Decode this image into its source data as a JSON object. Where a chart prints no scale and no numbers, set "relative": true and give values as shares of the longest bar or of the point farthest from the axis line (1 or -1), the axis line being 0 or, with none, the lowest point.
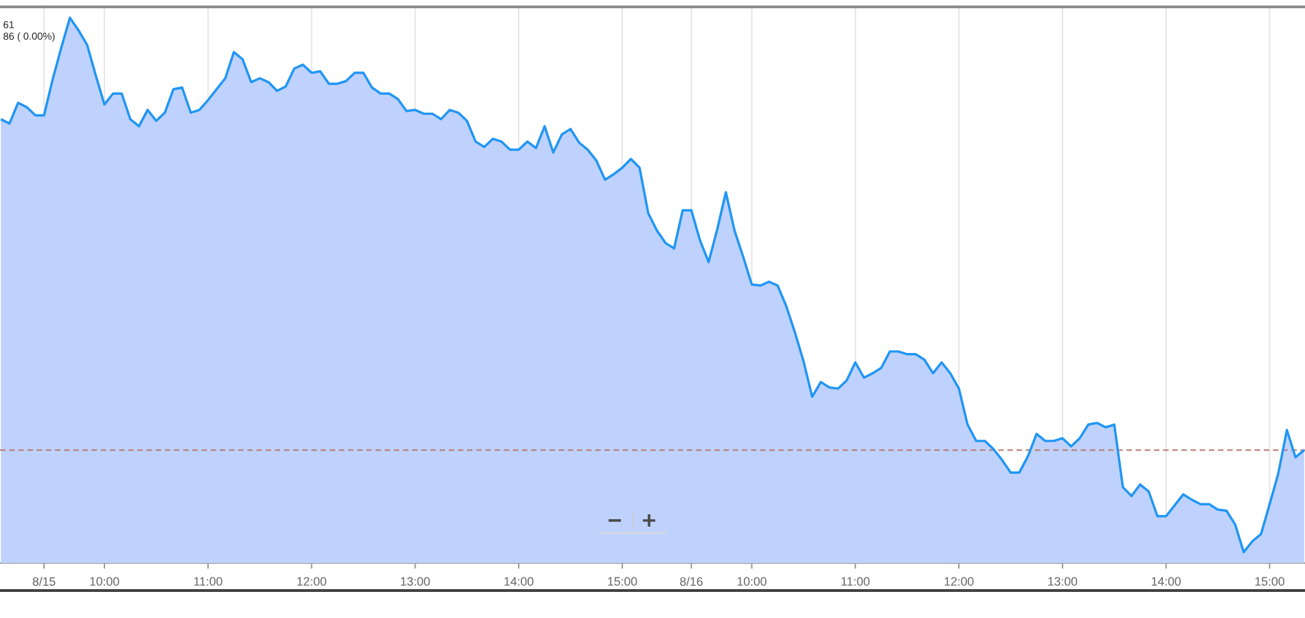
{
  "chart_data": {
    "type": "area",
    "relative": true,
    "color": "#2196f3",
    "categories": [
      null,
      null,
      null,
      null,
      null,
      "8/15",
      null,
      null,
      null,
      null,
      null,
      null,
      "10:00",
      null,
      null,
      null,
      null,
      null,
      null,
      null,
      null,
      null,
      null,
      null,
      "11:00",
      null,
      null,
      null,
      null,
      null,
      null,
      null,
      null,
      null,
      null,
      null,
      "12:00",
      null,
      null,
      null,
      null,
      null,
      null,
      null,
      null,
      null,
      null,
      null,
      "13:00",
      null,
      null,
      null,
      null,
      null,
      null,
      null,
      null,
      null,
      null,
      null,
      "14:00",
      null,
      null,
      null,
      null,
      null,
      null,
      null,
      null,
      null,
      null,
      null,
      "15:00",
      null,
      null,
      null,
      null,
      null,
      null,
      null,
      "8/16",
      null,
      null,
      null,
      null,
      null,
      null,
      "10:00",
      null,
      null,
      null,
      null,
      null,
      null,
      null,
      null,
      null,
      null,
      null,
      "11:00",
      null,
      null,
      null,
      null,
      null,
      null,
      null,
      null,
      null,
      null,
      null,
      "12:00",
      null,
      null,
      null,
      null,
      null,
      null,
      null,
      null,
      null,
      null,
      null,
      "13:00",
      null,
      null,
      null,
      null,
      null,
      null,
      null,
      null,
      null,
      null,
      null,
      "14:00",
      null,
      null,
      null,
      null,
      null,
      null,
      null,
      null,
      null,
      null,
      null,
      "15:00",
      null,
      null,
      null,
      null
    ],
    "values": [
      0.814,
      0.806,
      0.844,
      0.836,
      0.821,
      0.821,
      0.887,
      0.945,
      1.0,
      0.977,
      0.95,
      0.894,
      0.841,
      0.861,
      0.861,
      0.814,
      0.801,
      0.831,
      0.811,
      0.826,
      0.869,
      0.872,
      0.826,
      0.831,
      0.849,
      0.869,
      0.889,
      0.937,
      0.924,
      0.882,
      0.889,
      0.882,
      0.866,
      0.874,
      0.907,
      0.914,
      0.899,
      0.902,
      0.879,
      0.879,
      0.884,
      0.899,
      0.899,
      0.872,
      0.861,
      0.861,
      0.851,
      0.829,
      0.831,
      0.824,
      0.824,
      0.814,
      0.831,
      0.826,
      0.811,
      0.773,
      0.763,
      0.778,
      0.773,
      0.758,
      0.758,
      0.773,
      0.761,
      0.801,
      0.753,
      0.786,
      0.796,
      0.771,
      0.758,
      0.738,
      0.703,
      0.713,
      0.725,
      0.741,
      0.725,
      0.642,
      0.61,
      0.587,
      0.577,
      0.647,
      0.647,
      0.592,
      0.552,
      0.612,
      0.68,
      0.61,
      0.562,
      0.511,
      0.509,
      0.516,
      0.509,
      0.471,
      0.423,
      0.37,
      0.305,
      0.332,
      0.322,
      0.32,
      0.335,
      0.368,
      0.34,
      0.348,
      0.358,
      0.388,
      0.388,
      0.383,
      0.383,
      0.373,
      0.348,
      0.368,
      0.348,
      0.32,
      0.254,
      0.224,
      0.224,
      0.209,
      0.189,
      0.166,
      0.166,
      0.196,
      0.237,
      0.224,
      0.224,
      0.229,
      0.214,
      0.229,
      0.254,
      0.257,
      0.249,
      0.254,
      0.139,
      0.123,
      0.144,
      0.131,
      0.086,
      0.086,
      0.106,
      0.126,
      0.116,
      0.108,
      0.108,
      0.098,
      0.096,
      0.071,
      0.02,
      0.04,
      0.053,
      0.108,
      0.164,
      0.244,
      0.194,
      0.207
    ],
    "grid": "x",
    "ref_lines": [
      {
        "axis": "y",
        "value": 0.207,
        "color": "#b8766a",
        "line_style": "dashed"
      }
    ],
    "annotations": [
      "61",
      "86 ( 0.00%)"
    ]
  }
}
